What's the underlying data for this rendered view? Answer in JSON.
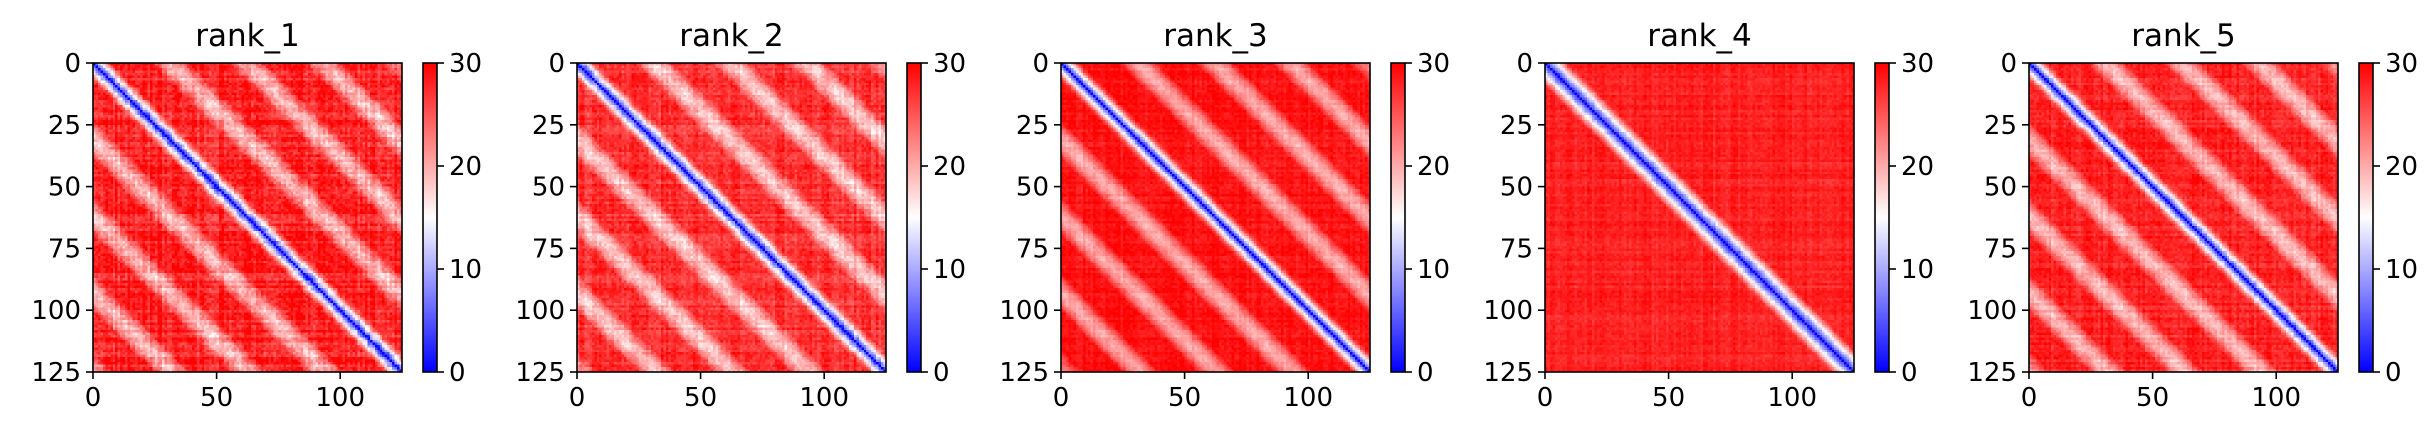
{
  "chart_data": [
    {
      "type": "heatmap",
      "title": "rank_1",
      "matrix_size": 125,
      "xlim": [
        0,
        125
      ],
      "ylim": [
        0,
        125
      ],
      "x_ticks": [
        "0",
        "50",
        "100"
      ],
      "y_ticks": [
        "0",
        "25",
        "50",
        "75",
        "100",
        "125"
      ],
      "colorbar": {
        "vmin": 0,
        "vmax": 30,
        "ticks": [
          "0",
          "10",
          "20",
          "30"
        ],
        "colormap": "bwr"
      },
      "pattern": {
        "diagonal_value": 2,
        "off_diagonal_band_periods": 8,
        "far_value": 28,
        "noise": 6
      }
    },
    {
      "type": "heatmap",
      "title": "rank_2",
      "matrix_size": 125,
      "xlim": [
        0,
        125
      ],
      "ylim": [
        0,
        125
      ],
      "x_ticks": [
        "0",
        "50",
        "100"
      ],
      "y_ticks": [
        "0",
        "25",
        "50",
        "75",
        "100",
        "125"
      ],
      "colorbar": {
        "vmin": 0,
        "vmax": 30,
        "ticks": [
          "0",
          "10",
          "20",
          "30"
        ],
        "colormap": "bwr"
      },
      "pattern": {
        "diagonal_value": 2,
        "off_diagonal_band_periods": 8,
        "far_value": 27,
        "noise": 5
      }
    },
    {
      "type": "heatmap",
      "title": "rank_3",
      "matrix_size": 125,
      "xlim": [
        0,
        125
      ],
      "ylim": [
        0,
        125
      ],
      "x_ticks": [
        "0",
        "50",
        "100"
      ],
      "y_ticks": [
        "0",
        "25",
        "50",
        "75",
        "100",
        "125"
      ],
      "colorbar": {
        "vmin": 0,
        "vmax": 30,
        "ticks": [
          "0",
          "10",
          "20",
          "30"
        ],
        "colormap": "bwr"
      },
      "pattern": {
        "diagonal_value": 2,
        "off_diagonal_band_periods": 8,
        "far_value": 29,
        "noise": 3
      }
    },
    {
      "type": "heatmap",
      "title": "rank_4",
      "matrix_size": 125,
      "xlim": [
        0,
        125
      ],
      "ylim": [
        0,
        125
      ],
      "x_ticks": [
        "0",
        "50",
        "100"
      ],
      "y_ticks": [
        "0",
        "25",
        "50",
        "75",
        "100",
        "125"
      ],
      "colorbar": {
        "vmin": 0,
        "vmax": 30,
        "ticks": [
          "0",
          "10",
          "20",
          "30"
        ],
        "colormap": "bwr"
      },
      "pattern": {
        "diagonal_value": 2,
        "off_diagonal_band_periods": 0,
        "far_value": 30,
        "noise": 3
      }
    },
    {
      "type": "heatmap",
      "title": "rank_5",
      "matrix_size": 125,
      "xlim": [
        0,
        125
      ],
      "ylim": [
        0,
        125
      ],
      "x_ticks": [
        "0",
        "50",
        "100"
      ],
      "y_ticks": [
        "0",
        "25",
        "50",
        "75",
        "100",
        "125"
      ],
      "colorbar": {
        "vmin": 0,
        "vmax": 30,
        "ticks": [
          "0",
          "10",
          "20",
          "30"
        ],
        "colormap": "bwr"
      },
      "pattern": {
        "diagonal_value": 2,
        "off_diagonal_band_periods": 8,
        "far_value": 28,
        "noise": 4
      }
    }
  ]
}
